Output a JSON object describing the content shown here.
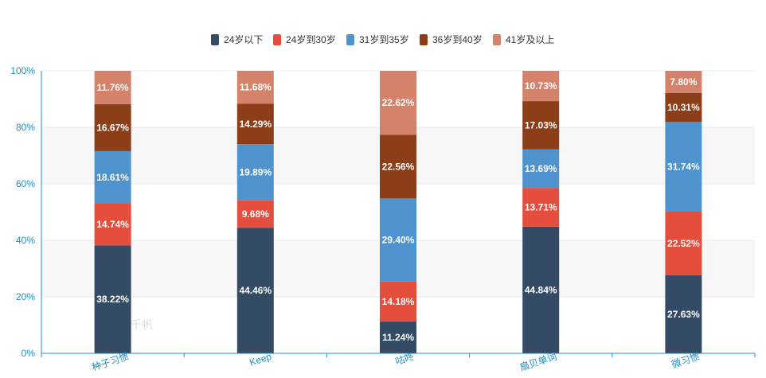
{
  "chart_data": {
    "type": "bar",
    "stacked": true,
    "categories": [
      "种子习惯",
      "Keep",
      "咕咚",
      "扇贝单词",
      "微习惯"
    ],
    "series": [
      {
        "name": "24岁以下",
        "color": "#344b65",
        "values": [
          38.22,
          44.46,
          11.24,
          44.84,
          27.63
        ],
        "labels": [
          "38.22%",
          "44.46%",
          "11.24%",
          "44.84%",
          "27.63%"
        ]
      },
      {
        "name": "24岁到30岁",
        "color": "#e54e3c",
        "values": [
          14.74,
          9.68,
          14.18,
          13.71,
          22.52
        ],
        "labels": [
          "14.74%",
          "9.68%",
          "14.18%",
          "13.71%",
          "22.52%"
        ]
      },
      {
        "name": "31岁到35岁",
        "color": "#4e93ce",
        "values": [
          18.61,
          19.89,
          29.4,
          13.69,
          31.74
        ],
        "labels": [
          "18.61%",
          "19.89%",
          "29.40%",
          "13.69%",
          "31.74%"
        ]
      },
      {
        "name": "36岁到40岁",
        "color": "#8b3e17",
        "values": [
          16.67,
          14.29,
          22.56,
          17.03,
          10.31
        ],
        "labels": [
          "16.67%",
          "14.29%",
          "22.56%",
          "17.03%",
          "10.31%"
        ]
      },
      {
        "name": "41岁及以上",
        "color": "#d4826a",
        "values": [
          11.76,
          11.68,
          22.62,
          10.73,
          7.8
        ],
        "labels": [
          "11.76%",
          "11.68%",
          "22.62%",
          "10.73%",
          "7.80%"
        ]
      }
    ],
    "y_ticks": [
      "0%",
      "20%",
      "40%",
      "60%",
      "80%",
      "100%"
    ],
    "ylim": [
      0,
      100
    ],
    "legend_position": "top-center",
    "grid": true,
    "axis_color": "#1f8ec6",
    "watermark": "易观千帆"
  }
}
